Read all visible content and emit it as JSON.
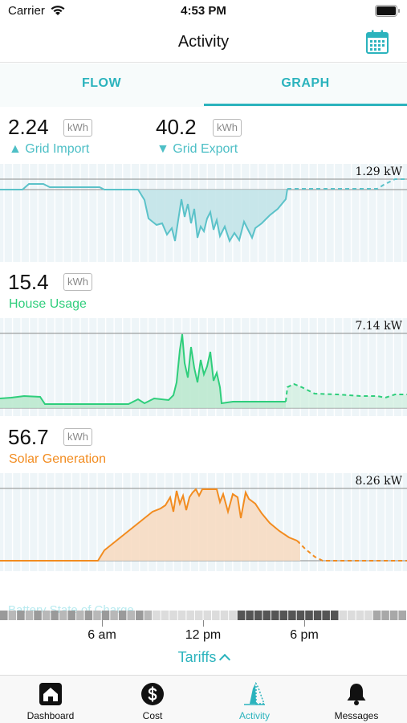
{
  "status": {
    "carrier": "Carrier",
    "time": "4:53 PM"
  },
  "header": {
    "title": "Activity"
  },
  "tabs": [
    {
      "label": "FLOW"
    },
    {
      "label": "GRAPH"
    }
  ],
  "summary": {
    "grid_import": {
      "value": "2.24",
      "unit": "kWh",
      "label": "▲ Grid Import"
    },
    "grid_export": {
      "value": "40.2",
      "unit": "kWh",
      "label": "▼ Grid Export"
    },
    "house_usage": {
      "value": "15.4",
      "unit": "kWh",
      "label": "House Usage"
    },
    "solar_generation": {
      "value": "56.7",
      "unit": "kWh",
      "label": "Solar Generation"
    }
  },
  "graphs": {
    "grid": {
      "peak_label": "1.29 kW"
    },
    "house": {
      "peak_label": "7.14 kW"
    },
    "solar": {
      "peak_label": "8.26 kW"
    }
  },
  "battery_label": "Battery State of Charge",
  "time_axis": {
    "labels": [
      "6 am",
      "12 pm",
      "6 pm"
    ]
  },
  "tariffs": {
    "label": "Tariffs"
  },
  "tab_bar": [
    {
      "label": "Dashboard",
      "icon": "house-icon"
    },
    {
      "label": "Cost",
      "icon": "dollar-icon"
    },
    {
      "label": "Activity",
      "icon": "activity-icon"
    },
    {
      "label": "Messages",
      "icon": "bell-icon"
    }
  ],
  "colors": {
    "accent": "#2bb3bd",
    "grid": "#5bc2c9",
    "house": "#2fce7c",
    "solar": "#f28c20"
  }
}
